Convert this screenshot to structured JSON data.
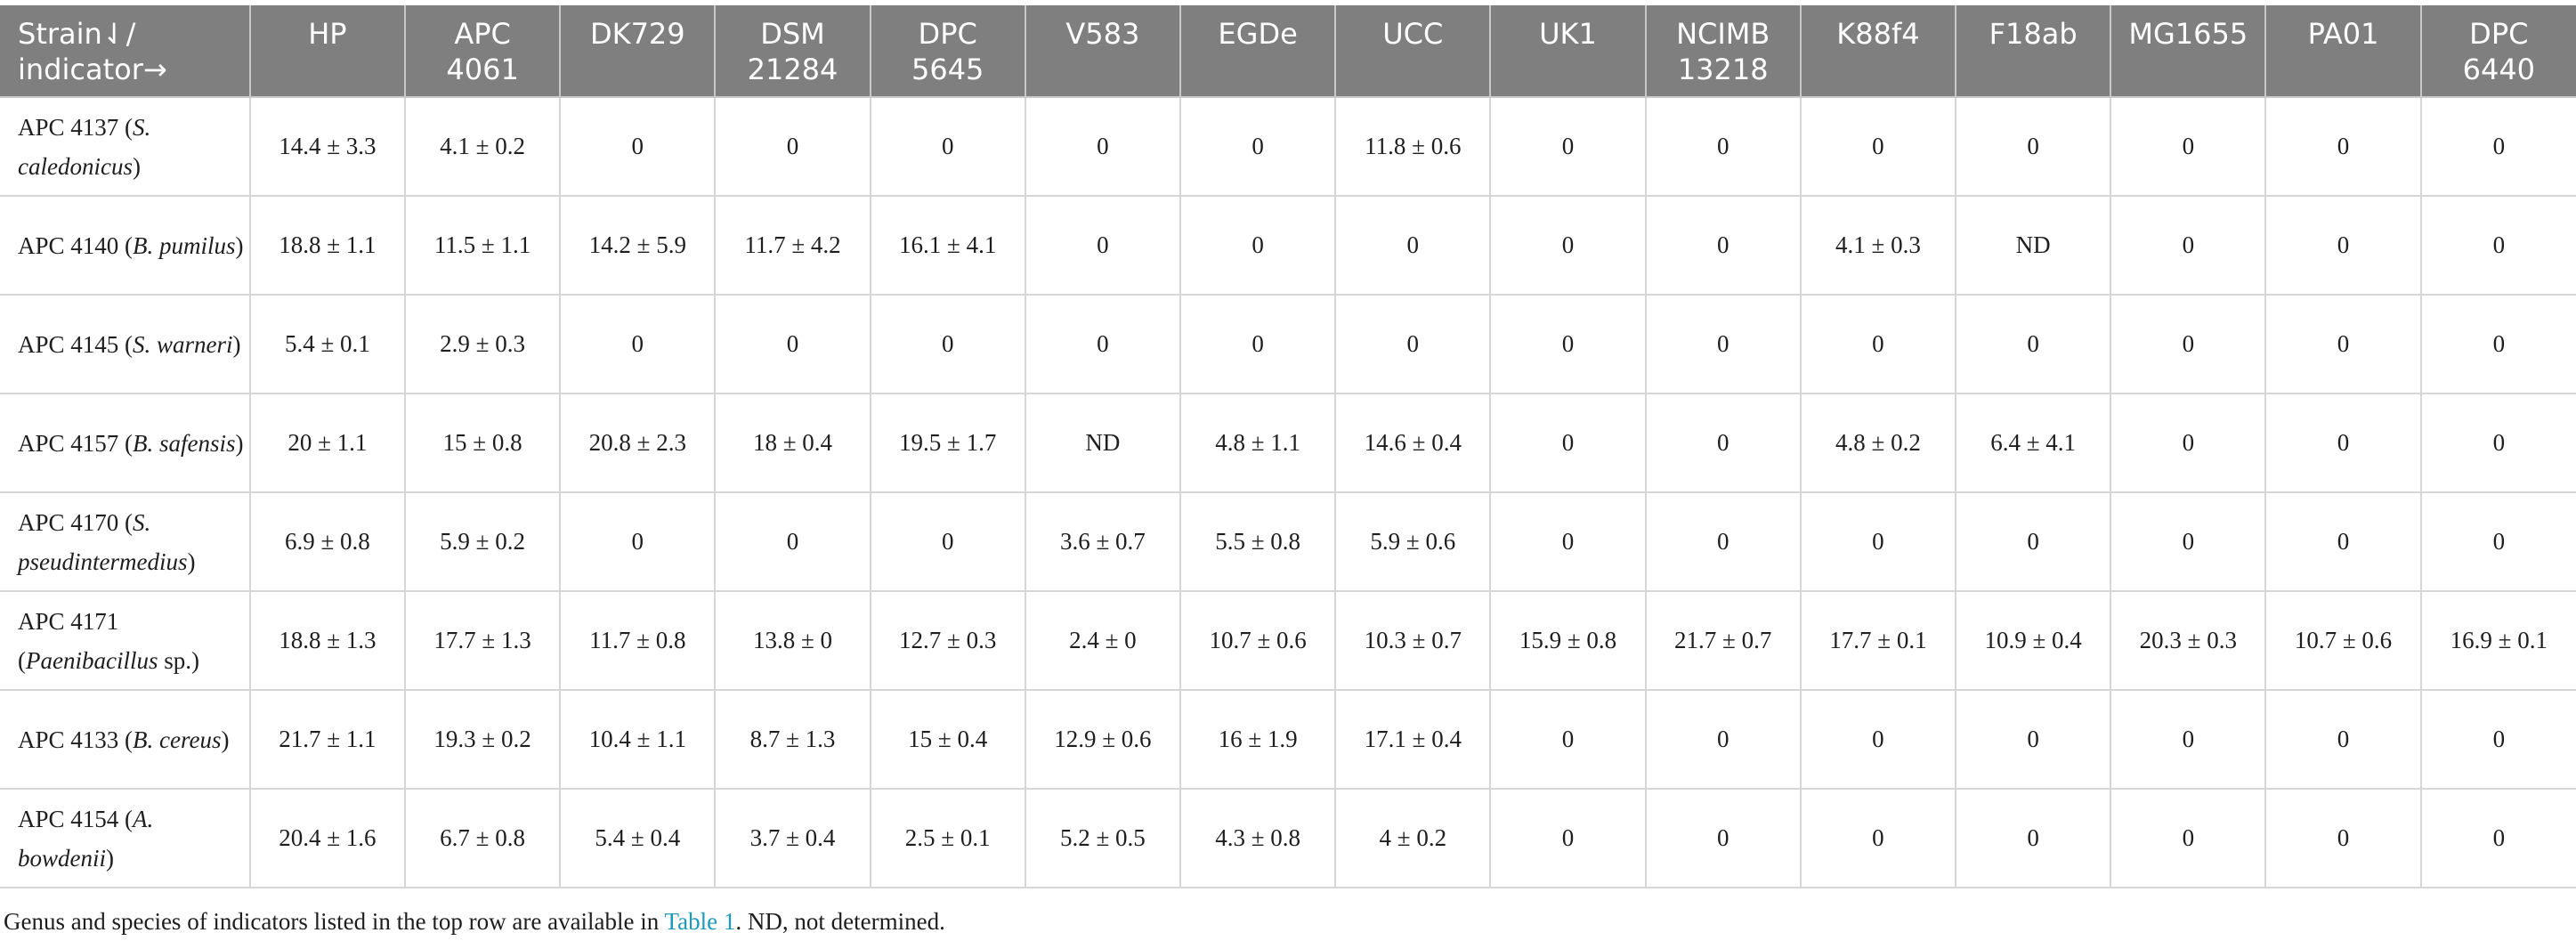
{
  "table": {
    "header_first_line1": "Strain⇃/",
    "header_first_line2": "indicator→",
    "columns": [
      [
        "HP",
        ""
      ],
      [
        "APC",
        "4061"
      ],
      [
        "DK729",
        ""
      ],
      [
        "DSM",
        "21284"
      ],
      [
        "DPC",
        "5645"
      ],
      [
        "V583",
        ""
      ],
      [
        "EGDe",
        ""
      ],
      [
        "UCC",
        ""
      ],
      [
        "UK1",
        ""
      ],
      [
        "NCIMB",
        "13218"
      ],
      [
        "K88f4",
        ""
      ],
      [
        "F18ab",
        ""
      ],
      [
        "MG1655",
        ""
      ],
      [
        "PA01",
        ""
      ],
      [
        "DPC",
        "6440"
      ]
    ],
    "rows": [
      {
        "strain_prefix": "APC 4137 (",
        "strain_italic": "S. caledonicus",
        "strain_suffix": ")",
        "values": [
          "14.4 ± 3.3",
          "4.1 ± 0.2",
          "0",
          "0",
          "0",
          "0",
          "0",
          "11.8 ± 0.6",
          "0",
          "0",
          "0",
          "0",
          "0",
          "0",
          "0"
        ]
      },
      {
        "strain_prefix": "APC 4140 (",
        "strain_italic": "B. pumilus",
        "strain_suffix": ")",
        "values": [
          "18.8 ± 1.1",
          "11.5 ± 1.1",
          "14.2 ± 5.9",
          "11.7 ± 4.2",
          "16.1 ± 4.1",
          "0",
          "0",
          "0",
          "0",
          "0",
          "4.1 ± 0.3",
          "ND",
          "0",
          "0",
          "0"
        ]
      },
      {
        "strain_prefix": "APC 4145 (",
        "strain_italic": "S. warneri",
        "strain_suffix": ")",
        "values": [
          "5.4 ± 0.1",
          "2.9 ± 0.3",
          "0",
          "0",
          "0",
          "0",
          "0",
          "0",
          "0",
          "0",
          "0",
          "0",
          "0",
          "0",
          "0"
        ]
      },
      {
        "strain_prefix": "APC 4157 (",
        "strain_italic": "B. safensis",
        "strain_suffix": ")",
        "values": [
          "20 ± 1.1",
          "15 ± 0.8",
          "20.8 ± 2.3",
          "18 ± 0.4",
          "19.5 ± 1.7",
          "ND",
          "4.8 ± 1.1",
          "14.6 ± 0.4",
          "0",
          "0",
          "4.8 ± 0.2",
          "6.4 ± 4.1",
          "0",
          "0",
          "0"
        ]
      },
      {
        "strain_prefix": "APC 4170 (",
        "strain_italic": "S. pseudintermedius",
        "strain_suffix": ")",
        "values": [
          "6.9 ± 0.8",
          "5.9 ± 0.2",
          "0",
          "0",
          "0",
          "3.6 ± 0.7",
          "5.5 ± 0.8",
          "5.9 ± 0.6",
          "0",
          "0",
          "0",
          "0",
          "0",
          "0",
          "0"
        ]
      },
      {
        "strain_prefix": "APC 4171 (",
        "strain_italic": "Paenibacillus",
        "strain_suffix": " sp.)",
        "values": [
          "18.8 ± 1.3",
          "17.7 ± 1.3",
          "11.7 ± 0.8",
          "13.8 ± 0",
          "12.7 ± 0.3",
          "2.4 ± 0",
          "10.7 ± 0.6",
          "10.3 ± 0.7",
          "15.9 ± 0.8",
          "21.7 ± 0.7",
          "17.7 ± 0.1",
          "10.9 ± 0.4",
          "20.3 ± 0.3",
          "10.7 ± 0.6",
          "16.9 ± 0.1"
        ]
      },
      {
        "strain_prefix": "APC 4133 (",
        "strain_italic": "B. cereus",
        "strain_suffix": ")",
        "values": [
          "21.7 ± 1.1",
          "19.3 ± 0.2",
          "10.4 ± 1.1",
          "8.7 ± 1.3",
          "15 ± 0.4",
          "12.9 ± 0.6",
          "16 ± 1.9",
          "17.1 ± 0.4",
          "0",
          "0",
          "0",
          "0",
          "0",
          "0",
          "0"
        ]
      },
      {
        "strain_prefix": "APC 4154 (",
        "strain_italic": "A. bowdenii",
        "strain_suffix": ")",
        "values": [
          "20.4 ± 1.6",
          "6.7 ± 0.8",
          "5.4 ± 0.4",
          "3.7 ± 0.4",
          "2.5 ± 0.1",
          "5.2 ± 0.5",
          "4.3 ± 0.8",
          "4 ± 0.2",
          "0",
          "0",
          "0",
          "0",
          "0",
          "0",
          "0"
        ]
      }
    ]
  },
  "footnote": {
    "before": "Genus and species of indicators listed in the top row are available in ",
    "link": "Table 1",
    "after": ". ND, not determined."
  }
}
